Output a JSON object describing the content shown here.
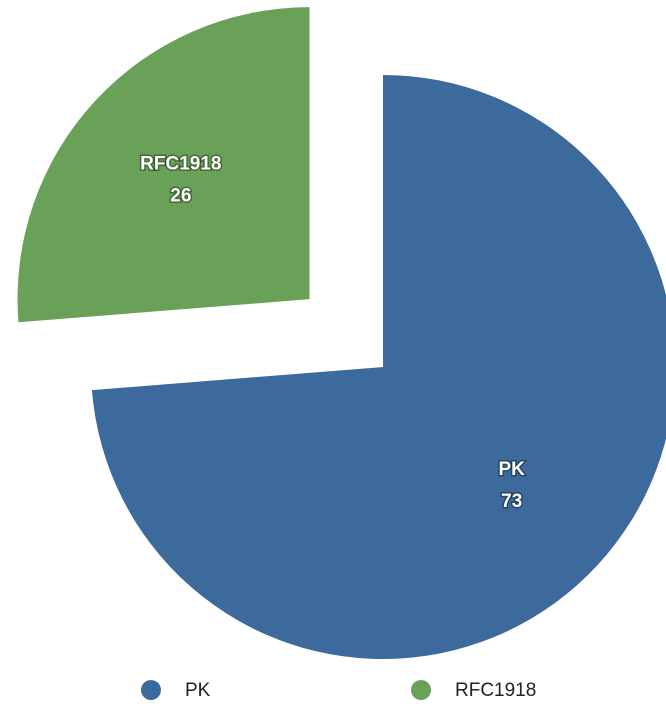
{
  "chart_data": {
    "type": "pie",
    "categories": [
      "PK",
      "RFC1918"
    ],
    "values": [
      73,
      26
    ],
    "colors": [
      "#3d6a9c",
      "#6aa158"
    ],
    "legend": "bottom"
  }
}
